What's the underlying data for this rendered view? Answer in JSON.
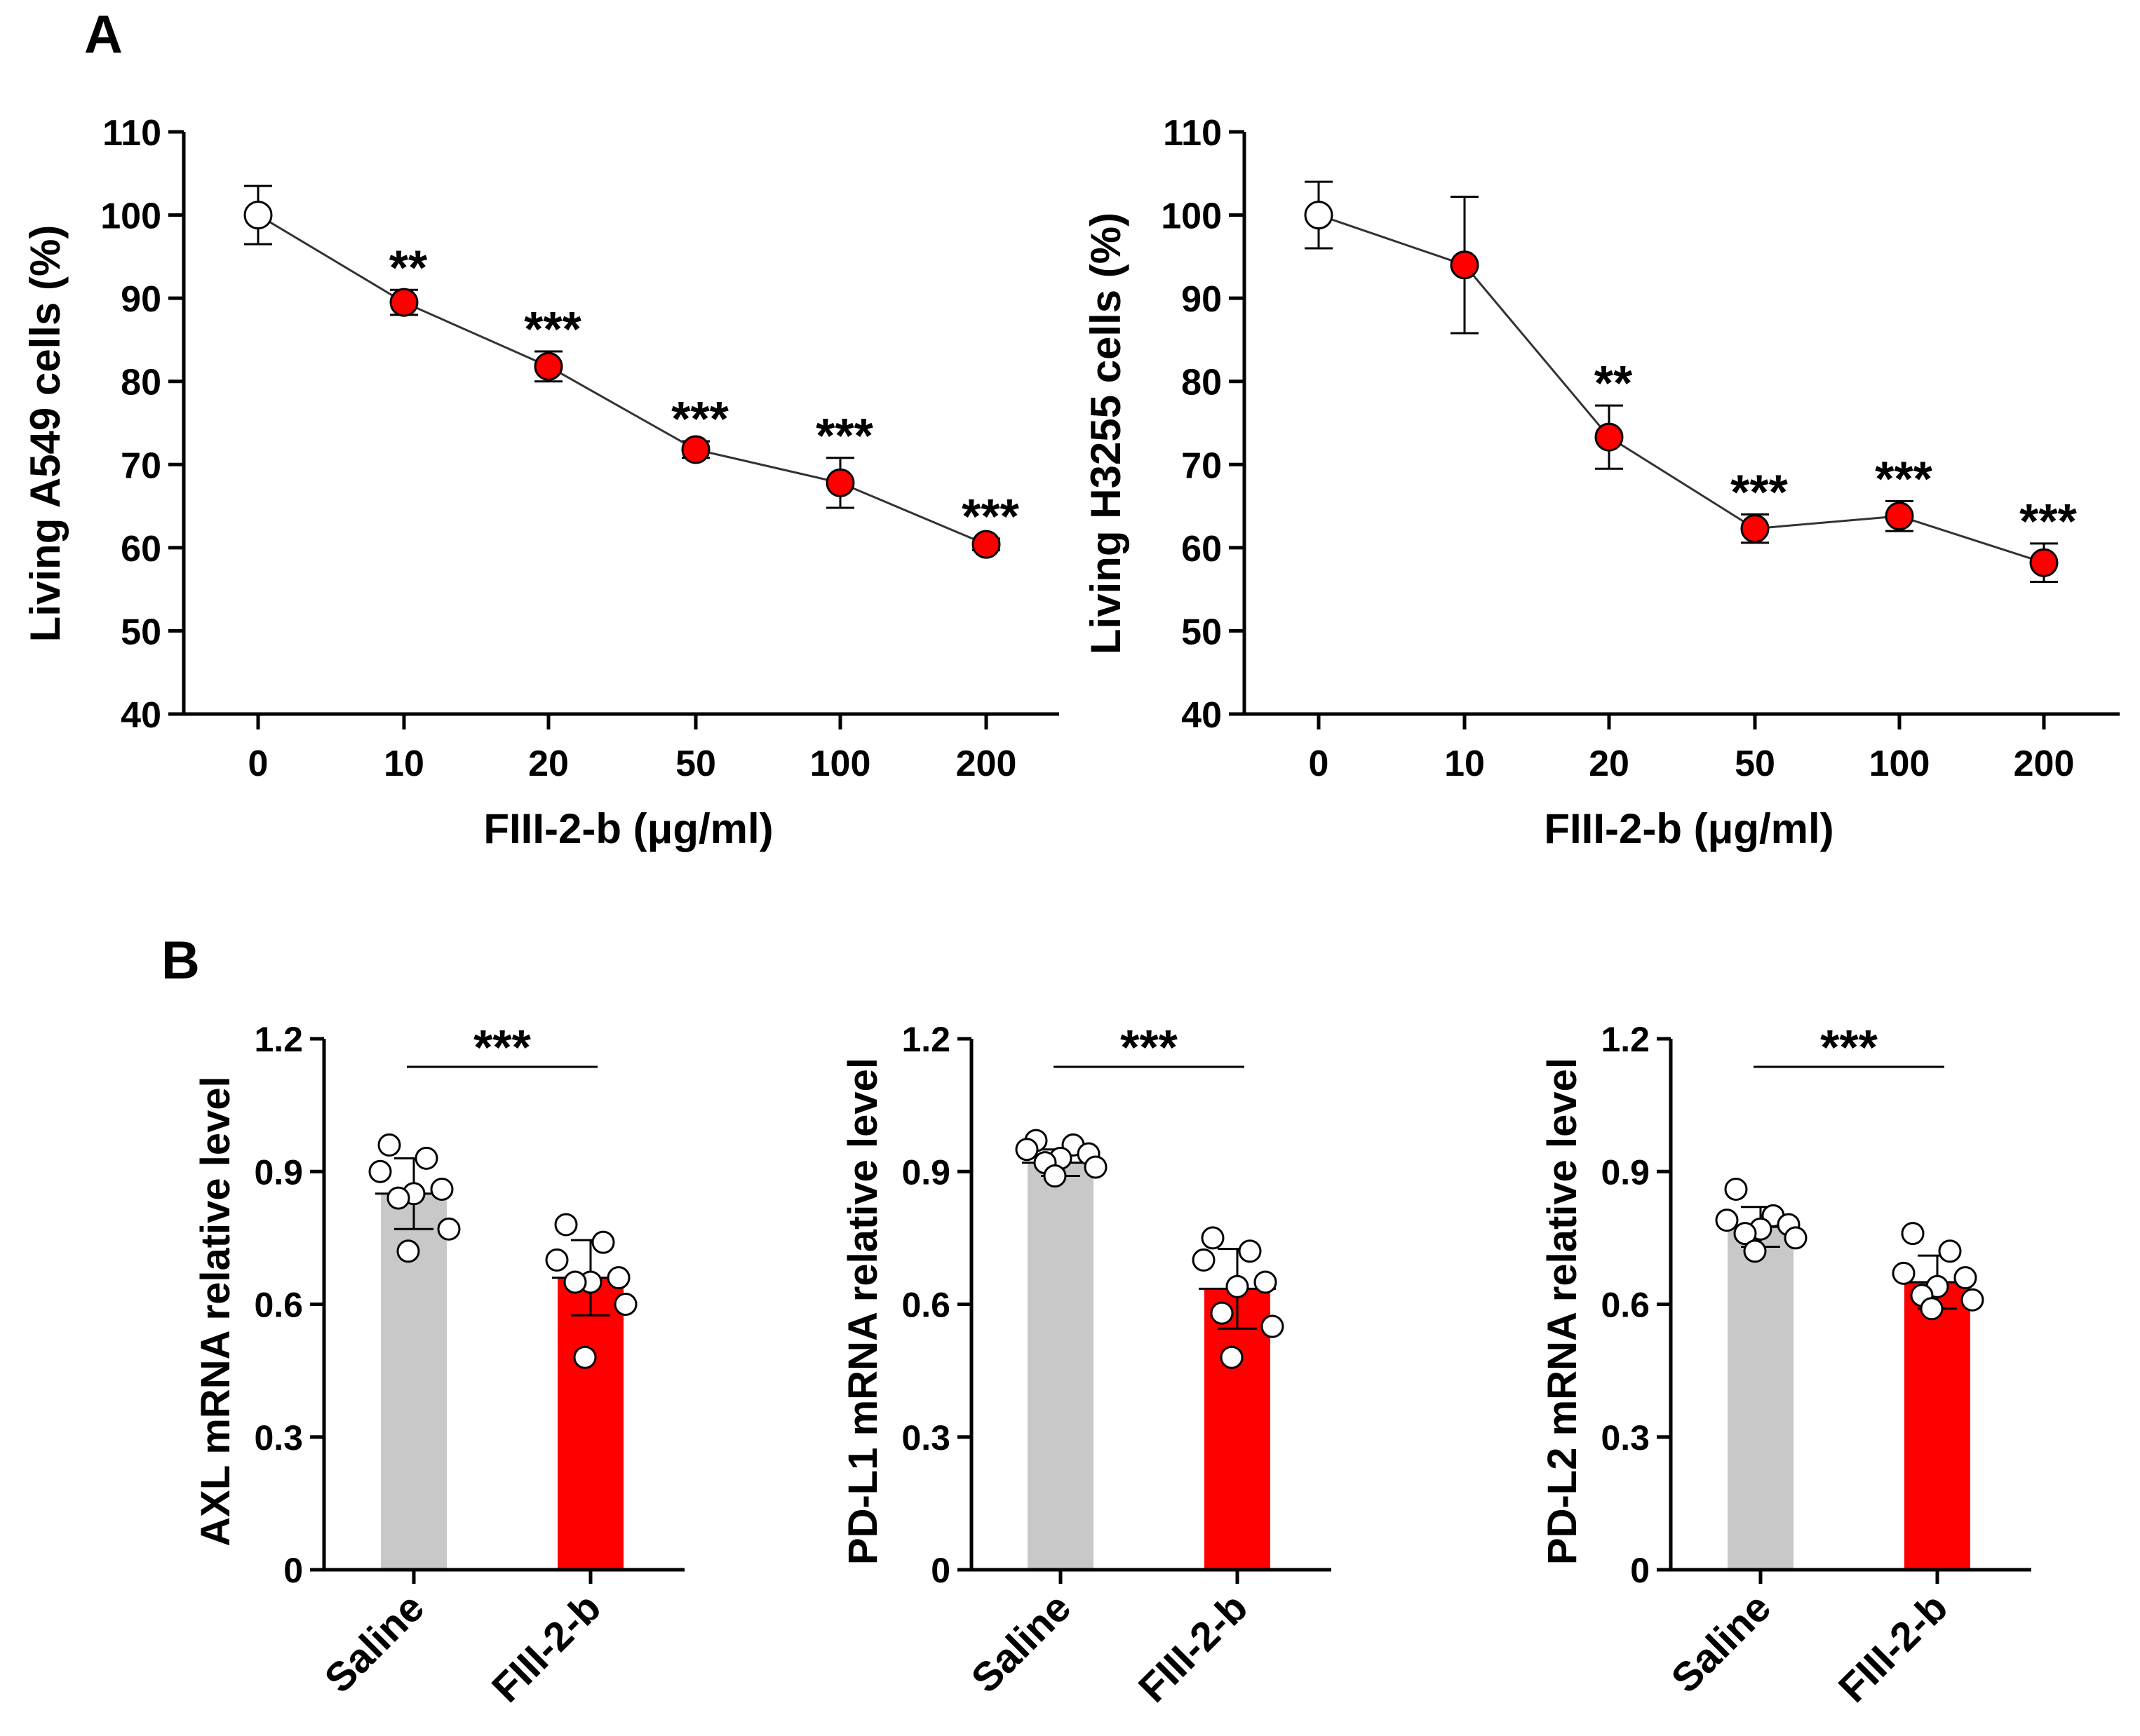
{
  "figure": {
    "panel_labels": {
      "A": "A",
      "B": "B"
    }
  },
  "colors": {
    "treatment": "#FF0000",
    "control_marker": "#FFFFFF",
    "control_bar": "#C8C8C8",
    "axis": "#000000"
  },
  "chart_data": [
    {
      "id": "a549",
      "type": "line",
      "panel": "A",
      "title": "",
      "xlabel": "FIII-2-b (μg/ml)",
      "ylabel": "Living  A549 cells (%)",
      "ylim": [
        40,
        110
      ],
      "yticks": [
        "40",
        "50",
        "60",
        "70",
        "80",
        "90",
        "100",
        "110"
      ],
      "categories": [
        "0",
        "10",
        "20",
        "50",
        "100",
        "200"
      ],
      "values": [
        100,
        89.5,
        81.8,
        71.8,
        67.8,
        60.4
      ],
      "errors": [
        3.5,
        1.5,
        1.8,
        1.0,
        3.0,
        0.7
      ],
      "significance": [
        "",
        "**",
        "***",
        "***",
        "***",
        "***"
      ]
    },
    {
      "id": "h3255",
      "type": "line",
      "panel": "A",
      "title": "",
      "xlabel": "FIII-2-b (μg/ml)",
      "ylabel": "Living H3255 cells (%)",
      "ylim": [
        40,
        110
      ],
      "yticks": [
        "40",
        "50",
        "60",
        "70",
        "80",
        "90",
        "100",
        "110"
      ],
      "categories": [
        "0",
        "10",
        "20",
        "50",
        "100",
        "200"
      ],
      "values": [
        100,
        94,
        73.3,
        62.3,
        63.8,
        58.2
      ],
      "errors": [
        4.0,
        8.2,
        3.8,
        1.7,
        1.8,
        2.3
      ],
      "significance": [
        "",
        "",
        "**",
        "***",
        "***",
        "***"
      ]
    },
    {
      "id": "axl",
      "type": "bar",
      "panel": "B",
      "title": "",
      "xlabel": "",
      "ylabel": "AXL mRNA relative level",
      "ylim": [
        0,
        1.2
      ],
      "yticks": [
        "0",
        "0.3",
        "0.6",
        "0.9",
        "1.2"
      ],
      "categories": [
        "Saline",
        "FIII-2-b"
      ],
      "values": [
        0.85,
        0.66
      ],
      "errors": [
        0.08,
        0.085
      ],
      "points": [
        [
          0.96,
          0.93,
          0.9,
          0.86,
          0.85,
          0.84,
          0.77,
          0.72
        ],
        [
          0.78,
          0.74,
          0.7,
          0.66,
          0.65,
          0.65,
          0.6,
          0.48
        ]
      ],
      "significance": "***"
    },
    {
      "id": "pdl1",
      "type": "bar",
      "panel": "B",
      "title": "",
      "xlabel": "",
      "ylabel": "PD-L1 mRNA relative level",
      "ylim": [
        0,
        1.2
      ],
      "yticks": [
        "0",
        "0.3",
        "0.6",
        "0.9",
        "1.2"
      ],
      "categories": [
        "Saline",
        "FIII-2-b"
      ],
      "values": [
        0.92,
        0.635
      ],
      "errors": [
        0.03,
        0.09
      ],
      "points": [
        [
          0.97,
          0.96,
          0.95,
          0.94,
          0.93,
          0.92,
          0.91,
          0.89
        ],
        [
          0.75,
          0.72,
          0.7,
          0.65,
          0.64,
          0.58,
          0.55,
          0.48
        ]
      ],
      "significance": "***"
    },
    {
      "id": "pdl2",
      "type": "bar",
      "panel": "B",
      "title": "",
      "xlabel": "",
      "ylabel": "PD-L2 mRNA relative level",
      "ylim": [
        0,
        1.2
      ],
      "yticks": [
        "0",
        "0.3",
        "0.6",
        "0.9",
        "1.2"
      ],
      "categories": [
        "Saline",
        "FIII-2-b"
      ],
      "values": [
        0.775,
        0.65
      ],
      "errors": [
        0.045,
        0.06
      ],
      "points": [
        [
          0.86,
          0.8,
          0.79,
          0.78,
          0.77,
          0.76,
          0.75,
          0.72
        ],
        [
          0.76,
          0.72,
          0.67,
          0.66,
          0.64,
          0.62,
          0.61,
          0.59
        ]
      ],
      "significance": "***"
    }
  ]
}
